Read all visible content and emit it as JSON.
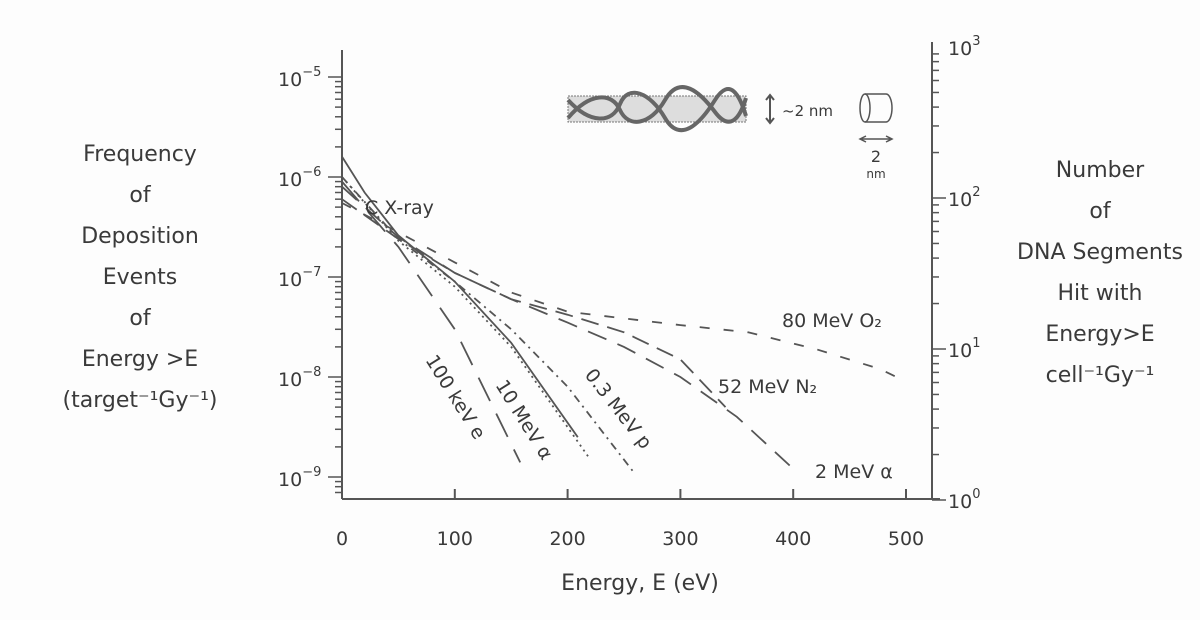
{
  "chart_data": {
    "type": "line",
    "xlabel": "Energy, E (eV)",
    "ylabel_left": [
      "Frequency",
      "of",
      "Deposition",
      "Events",
      "of",
      "Energy >E",
      "(target⁻¹Gy⁻¹)"
    ],
    "ylabel_right": [
      "Number",
      "of",
      "DNA Segments",
      "Hit with",
      "Energy>E",
      "cell⁻¹Gy⁻¹"
    ],
    "x_ticks": [
      0,
      100,
      200,
      300,
      400,
      500
    ],
    "xlim": [
      0,
      524
    ],
    "y_scale": "log",
    "ylim": [
      1e-09,
      1.9e-05
    ],
    "y_ticks_left": [
      {
        "v": 1e-05,
        "exp": "-5"
      },
      {
        "v": 1e-06,
        "exp": "-6"
      },
      {
        "v": 1e-07,
        "exp": "-7"
      },
      {
        "v": 1e-08,
        "exp": "-8"
      },
      {
        "v": 1e-09,
        "exp": "-9"
      }
    ],
    "y_ticks_right": [
      {
        "v": 1,
        "exp": "0"
      },
      {
        "v": 10,
        "exp": "1"
      },
      {
        "v": 100,
        "exp": "2"
      },
      {
        "v": 1000,
        "exp": "3"
      }
    ],
    "grid": false,
    "inset": {
      "dna_label": "~2 nm",
      "cyl_label_num": "2",
      "cyl_label_unit": "nm"
    },
    "series": [
      {
        "name": "100 keV e",
        "dash": "long",
        "points": [
          [
            0,
            9e-07
          ],
          [
            50,
            2e-07
          ],
          [
            100,
            3e-08
          ],
          [
            158,
            1.4e-09
          ]
        ]
      },
      {
        "name": "10 MeV α",
        "dash": "solid",
        "points": [
          [
            0,
            1.6e-06
          ],
          [
            20,
            7e-07
          ],
          [
            50,
            2.6e-07
          ],
          [
            100,
            9e-08
          ],
          [
            150,
            2.2e-08
          ],
          [
            209,
            2.5e-09
          ]
        ]
      },
      {
        "name": "C X-ray",
        "dash": "dotted",
        "points": [
          [
            0,
            1e-06
          ],
          [
            50,
            2.3e-07
          ],
          [
            100,
            8e-08
          ],
          [
            150,
            2e-08
          ],
          [
            220,
            1.5e-09
          ]
        ]
      },
      {
        "name": "0.3 MeV p",
        "dash": "dashdot",
        "points": [
          [
            0,
            1e-06
          ],
          [
            50,
            2.4e-07
          ],
          [
            100,
            9e-08
          ],
          [
            150,
            3e-08
          ],
          [
            200,
            8e-09
          ],
          [
            259,
            1.1e-09
          ]
        ]
      },
      {
        "name": "2 MeV α",
        "dash": "medium",
        "points": [
          [
            0,
            8e-07
          ],
          [
            50,
            2.5e-07
          ],
          [
            100,
            1.1e-07
          ],
          [
            150,
            6e-08
          ],
          [
            200,
            3.5e-08
          ],
          [
            250,
            2e-08
          ],
          [
            300,
            1e-08
          ],
          [
            350,
            4e-09
          ],
          [
            404,
            1.1e-09
          ]
        ]
      },
      {
        "name": "52 MeV N₂",
        "dash": "medium2",
        "points": [
          [
            0,
            6e-07
          ],
          [
            50,
            2.4e-07
          ],
          [
            100,
            1.1e-07
          ],
          [
            150,
            6e-08
          ],
          [
            200,
            4.2e-08
          ],
          [
            250,
            2.8e-08
          ],
          [
            300,
            1.5e-08
          ],
          [
            340,
            5e-09
          ]
        ]
      },
      {
        "name": "80 MeV O₂",
        "dash": "short",
        "points": [
          [
            0,
            5.5e-07
          ],
          [
            50,
            2.8e-07
          ],
          [
            100,
            1.4e-07
          ],
          [
            150,
            7e-08
          ],
          [
            200,
            4.5e-08
          ],
          [
            300,
            3.3e-08
          ],
          [
            360,
            2.8e-08
          ],
          [
            420,
            1.9e-08
          ],
          [
            477,
            1.2e-08
          ],
          [
            500,
            9e-09
          ]
        ]
      }
    ],
    "annotations": [
      "C X-ray",
      "100 keV e",
      "10 MeV α",
      "0.3 MeV p",
      "2 MeV α",
      "52 MeV N₂",
      "80 MeV O₂"
    ]
  }
}
